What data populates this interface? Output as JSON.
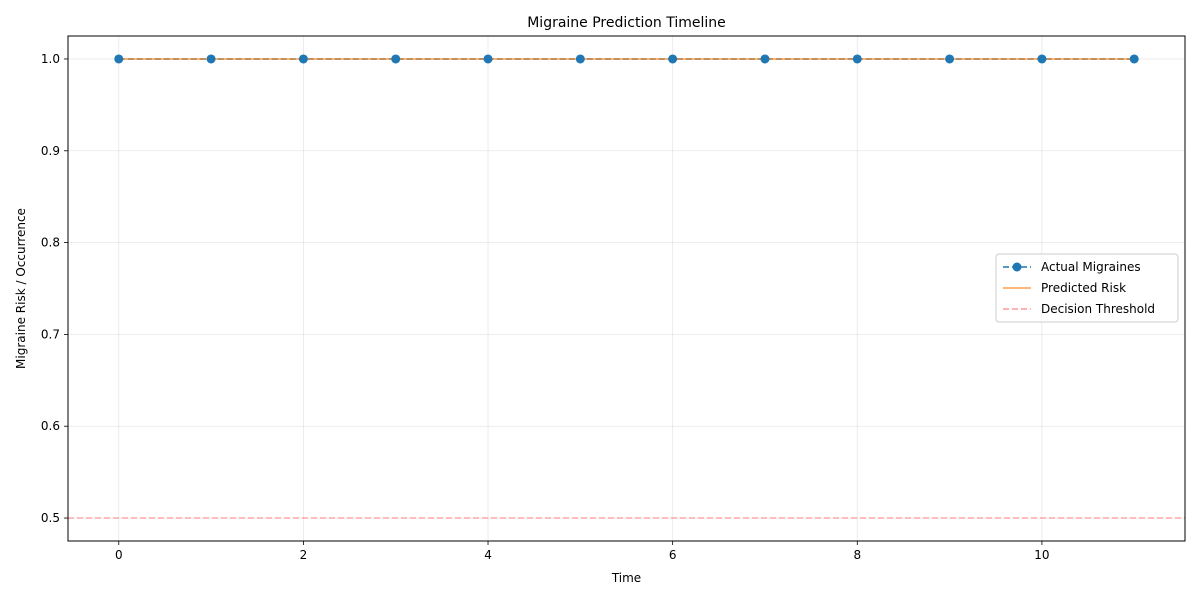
{
  "chart_data": {
    "type": "line",
    "title": "Migraine Prediction Timeline",
    "xlabel": "Time",
    "ylabel": "Migraine Risk / Occurrence",
    "xlim": [
      -0.55,
      11.55
    ],
    "ylim": [
      0.475,
      1.025
    ],
    "x_ticks": [
      0,
      2,
      4,
      6,
      8,
      10
    ],
    "y_ticks": [
      0.5,
      0.6,
      0.7,
      0.8,
      0.9,
      1.0
    ],
    "y_tick_labels": [
      "0.5",
      "0.6",
      "0.7",
      "0.8",
      "0.9",
      "1.0"
    ],
    "grid": true,
    "legend_position": "center-right",
    "x": [
      0,
      1,
      2,
      3,
      4,
      5,
      6,
      7,
      8,
      9,
      10,
      11
    ],
    "series": [
      {
        "name": "Actual Migraines",
        "style": "dashed-with-markers",
        "color": "#1f77b4",
        "values": [
          1,
          1,
          1,
          1,
          1,
          1,
          1,
          1,
          1,
          1,
          1,
          1
        ]
      },
      {
        "name": "Predicted Risk",
        "style": "solid",
        "color": "#ff7f0e",
        "values": [
          1,
          1,
          1,
          1,
          1,
          1,
          1,
          1,
          1,
          1,
          1,
          1
        ]
      }
    ],
    "threshold": {
      "name": "Decision Threshold",
      "value": 0.5,
      "color": "#ff9999",
      "style": "dashed"
    }
  }
}
